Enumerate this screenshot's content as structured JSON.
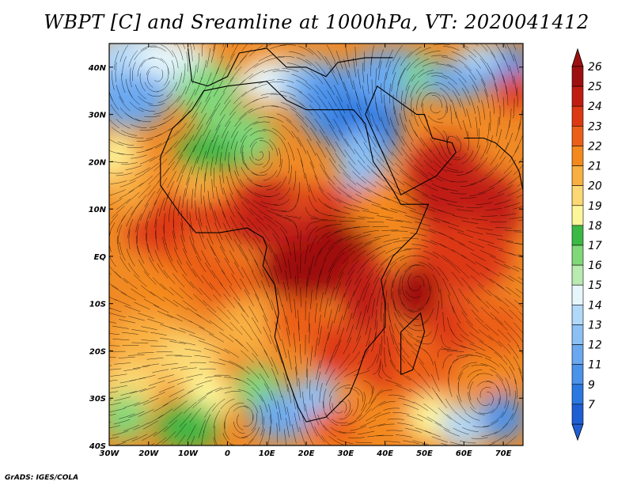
{
  "title": "WBPT [C] and Sreamline at 1000hPa, VT: 2020041412",
  "credit": "GrADS: IGES/COLA",
  "map": {
    "lon_range": [
      -30,
      75
    ],
    "lat_range": [
      -40,
      45
    ],
    "lon_ticks": [
      {
        "value": -30,
        "label": "30W"
      },
      {
        "value": -20,
        "label": "20W"
      },
      {
        "value": -10,
        "label": "10W"
      },
      {
        "value": 0,
        "label": "0"
      },
      {
        "value": 10,
        "label": "10E"
      },
      {
        "value": 20,
        "label": "20E"
      },
      {
        "value": 30,
        "label": "30E"
      },
      {
        "value": 40,
        "label": "40E"
      },
      {
        "value": 50,
        "label": "50E"
      },
      {
        "value": 60,
        "label": "60E"
      },
      {
        "value": 70,
        "label": "70E"
      }
    ],
    "lat_ticks": [
      {
        "value": 40,
        "label": "40N"
      },
      {
        "value": 30,
        "label": "30N"
      },
      {
        "value": 20,
        "label": "20N"
      },
      {
        "value": 10,
        "label": "10N"
      },
      {
        "value": 0,
        "label": "EQ"
      },
      {
        "value": -10,
        "label": "10S"
      },
      {
        "value": -20,
        "label": "20S"
      },
      {
        "value": -30,
        "label": "30S"
      },
      {
        "value": -40,
        "label": "40S"
      }
    ]
  },
  "colorbar": {
    "levels": [
      "7",
      "9",
      "11",
      "12",
      "13",
      "14",
      "15",
      "16",
      "17",
      "18",
      "19",
      "20",
      "21",
      "22",
      "23",
      "24",
      "25",
      "26"
    ],
    "colors": [
      "#1f5fd4",
      "#2a78e0",
      "#4b92ea",
      "#6aa8f0",
      "#8cc0f4",
      "#b2d8f8",
      "#e6f6fb",
      "#b9eab0",
      "#80d87a",
      "#3cb844",
      "#fdf59a",
      "#fbd873",
      "#f9b042",
      "#f4891e",
      "#ec5f18",
      "#dd3814",
      "#c01c12",
      "#9e1010"
    ]
  },
  "legend": {
    "position": "right",
    "arrows": "both-ends"
  }
}
